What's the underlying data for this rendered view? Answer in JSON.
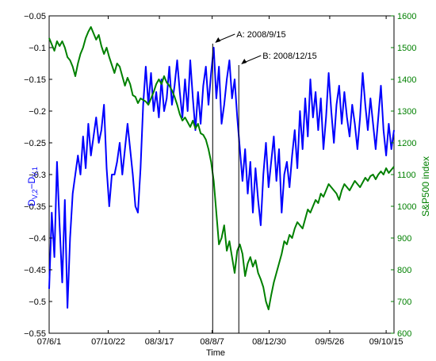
{
  "chart_data": {
    "type": "line",
    "xlabel": "Time",
    "ylabel_left_main": "D",
    "ylabel_left_sub1": "V,2",
    "ylabel_left_mid": "−D",
    "ylabel_left_sub2": "V,1",
    "ylabel_right": "S&P500 index",
    "x_ticks": [
      "07/6/1",
      "07/10/22",
      "08/3/17",
      "08/8/7",
      "08/12/30",
      "09/5/26",
      "09/10/15"
    ],
    "ylim_left": [
      -0.55,
      -0.05
    ],
    "y_ticks_left": [
      "-0.05",
      "-0.1",
      "-0.15",
      "-0.2",
      "-0.25",
      "-0.3",
      "-0.35",
      "-0.4",
      "-0.45",
      "-0.5",
      "-0.55"
    ],
    "ylim_right": [
      600,
      1600
    ],
    "y_ticks_right": [
      "1600",
      "1500",
      "1400",
      "1300",
      "1200",
      "1100",
      "1000",
      "900",
      "800",
      "700",
      "600"
    ],
    "left_color": "#0000ff",
    "right_color": "#008000",
    "series": [
      {
        "axis": "left",
        "color": "#0000ff",
        "points": [
          [
            0,
            -0.48
          ],
          [
            5,
            -0.36
          ],
          [
            10,
            -0.43
          ],
          [
            15,
            -0.28
          ],
          [
            20,
            -0.38
          ],
          [
            25,
            -0.47
          ],
          [
            30,
            -0.34
          ],
          [
            35,
            -0.51
          ],
          [
            40,
            -0.4
          ],
          [
            45,
            -0.33
          ],
          [
            50,
            -0.3
          ],
          [
            55,
            -0.27
          ],
          [
            60,
            -0.3
          ],
          [
            65,
            -0.24
          ],
          [
            70,
            -0.29
          ],
          [
            75,
            -0.22
          ],
          [
            80,
            -0.27
          ],
          [
            85,
            -0.24
          ],
          [
            90,
            -0.21
          ],
          [
            95,
            -0.25
          ],
          [
            100,
            -0.23
          ],
          [
            105,
            -0.19
          ],
          [
            110,
            -0.29
          ],
          [
            115,
            -0.35
          ],
          [
            120,
            -0.3
          ],
          [
            125,
            -0.3
          ],
          [
            130,
            -0.28
          ],
          [
            135,
            -0.25
          ],
          [
            140,
            -0.3
          ],
          [
            145,
            -0.26
          ],
          [
            150,
            -0.22
          ],
          [
            155,
            -0.26
          ],
          [
            160,
            -0.3
          ],
          [
            165,
            -0.35
          ],
          [
            170,
            -0.36
          ],
          [
            175,
            -0.29
          ],
          [
            180,
            -0.19
          ],
          [
            185,
            -0.13
          ],
          [
            190,
            -0.19
          ],
          [
            195,
            -0.14
          ],
          [
            200,
            -0.2
          ],
          [
            205,
            -0.17
          ],
          [
            210,
            -0.21
          ],
          [
            215,
            -0.15
          ],
          [
            220,
            -0.2
          ],
          [
            225,
            -0.18
          ],
          [
            230,
            -0.13
          ],
          [
            235,
            -0.19
          ],
          [
            240,
            -0.16
          ],
          [
            245,
            -0.12
          ],
          [
            250,
            -0.17
          ],
          [
            255,
            -0.21
          ],
          [
            260,
            -0.15
          ],
          [
            265,
            -0.2
          ],
          [
            270,
            -0.12
          ],
          [
            275,
            -0.18
          ],
          [
            280,
            -0.23
          ],
          [
            285,
            -0.17
          ],
          [
            290,
            -0.22
          ],
          [
            295,
            -0.16
          ],
          [
            300,
            -0.13
          ],
          [
            305,
            -0.19
          ],
          [
            310,
            -0.14
          ],
          [
            315,
            -0.1
          ],
          [
            320,
            -0.18
          ],
          [
            325,
            -0.13
          ],
          [
            330,
            -0.22
          ],
          [
            335,
            -0.19
          ],
          [
            340,
            -0.15
          ],
          [
            345,
            -0.12
          ],
          [
            350,
            -0.18
          ],
          [
            355,
            -0.15
          ],
          [
            360,
            -0.21
          ],
          [
            365,
            -0.26
          ],
          [
            370,
            -0.31
          ],
          [
            375,
            -0.26
          ],
          [
            380,
            -0.33
          ],
          [
            385,
            -0.28
          ],
          [
            390,
            -0.36
          ],
          [
            395,
            -0.29
          ],
          [
            400,
            -0.34
          ],
          [
            405,
            -0.38
          ],
          [
            410,
            -0.3
          ],
          [
            415,
            -0.25
          ],
          [
            420,
            -0.32
          ],
          [
            425,
            -0.28
          ],
          [
            430,
            -0.24
          ],
          [
            435,
            -0.31
          ],
          [
            440,
            -0.26
          ],
          [
            445,
            -0.36
          ],
          [
            450,
            -0.3
          ],
          [
            455,
            -0.28
          ],
          [
            460,
            -0.32
          ],
          [
            465,
            -0.27
          ],
          [
            470,
            -0.23
          ],
          [
            475,
            -0.29
          ],
          [
            480,
            -0.2
          ],
          [
            485,
            -0.26
          ],
          [
            490,
            -0.18
          ],
          [
            495,
            -0.24
          ],
          [
            500,
            -0.15
          ],
          [
            505,
            -0.21
          ],
          [
            510,
            -0.17
          ],
          [
            515,
            -0.23
          ],
          [
            520,
            -0.18
          ],
          [
            525,
            -0.26
          ],
          [
            530,
            -0.21
          ],
          [
            535,
            -0.14
          ],
          [
            540,
            -0.2
          ],
          [
            545,
            -0.25
          ],
          [
            550,
            -0.19
          ],
          [
            555,
            -0.16
          ],
          [
            560,
            -0.22
          ],
          [
            565,
            -0.17
          ],
          [
            570,
            -0.21
          ],
          [
            575,
            -0.24
          ],
          [
            580,
            -0.19
          ],
          [
            585,
            -0.22
          ],
          [
            590,
            -0.26
          ],
          [
            595,
            -0.21
          ],
          [
            600,
            -0.14
          ],
          [
            605,
            -0.19
          ],
          [
            610,
            -0.23
          ],
          [
            615,
            -0.18
          ],
          [
            620,
            -0.22
          ],
          [
            625,
            -0.26
          ],
          [
            630,
            -0.21
          ],
          [
            635,
            -0.16
          ],
          [
            640,
            -0.23
          ],
          [
            645,
            -0.27
          ],
          [
            650,
            -0.22
          ],
          [
            655,
            -0.26
          ],
          [
            660,
            -0.23
          ]
        ]
      },
      {
        "axis": "right",
        "color": "#008000",
        "points": [
          [
            0,
            1530
          ],
          [
            5,
            1510
          ],
          [
            10,
            1490
          ],
          [
            15,
            1520
          ],
          [
            20,
            1505
          ],
          [
            25,
            1520
          ],
          [
            30,
            1500
          ],
          [
            35,
            1470
          ],
          [
            40,
            1460
          ],
          [
            45,
            1440
          ],
          [
            50,
            1410
          ],
          [
            55,
            1450
          ],
          [
            60,
            1480
          ],
          [
            65,
            1500
          ],
          [
            70,
            1530
          ],
          [
            75,
            1550
          ],
          [
            80,
            1565
          ],
          [
            85,
            1545
          ],
          [
            90,
            1525
          ],
          [
            95,
            1540
          ],
          [
            100,
            1505
          ],
          [
            105,
            1480
          ],
          [
            110,
            1500
          ],
          [
            115,
            1470
          ],
          [
            120,
            1445
          ],
          [
            125,
            1420
          ],
          [
            130,
            1450
          ],
          [
            135,
            1440
          ],
          [
            140,
            1410
          ],
          [
            145,
            1380
          ],
          [
            150,
            1405
          ],
          [
            155,
            1385
          ],
          [
            160,
            1350
          ],
          [
            165,
            1345
          ],
          [
            170,
            1325
          ],
          [
            175,
            1340
          ],
          [
            180,
            1335
          ],
          [
            185,
            1330
          ],
          [
            190,
            1320
          ],
          [
            195,
            1340
          ],
          [
            200,
            1360
          ],
          [
            205,
            1385
          ],
          [
            210,
            1400
          ],
          [
            215,
            1385
          ],
          [
            220,
            1410
          ],
          [
            225,
            1390
          ],
          [
            230,
            1380
          ],
          [
            235,
            1365
          ],
          [
            240,
            1345
          ],
          [
            245,
            1320
          ],
          [
            250,
            1290
          ],
          [
            255,
            1270
          ],
          [
            260,
            1280
          ],
          [
            265,
            1265
          ],
          [
            270,
            1250
          ],
          [
            275,
            1270
          ],
          [
            280,
            1245
          ],
          [
            285,
            1260
          ],
          [
            290,
            1230
          ],
          [
            295,
            1225
          ],
          [
            300,
            1210
          ],
          [
            305,
            1180
          ],
          [
            310,
            1140
          ],
          [
            315,
            1080
          ],
          [
            320,
            980
          ],
          [
            325,
            880
          ],
          [
            330,
            900
          ],
          [
            335,
            940
          ],
          [
            340,
            860
          ],
          [
            345,
            890
          ],
          [
            350,
            840
          ],
          [
            355,
            790
          ],
          [
            360,
            860
          ],
          [
            365,
            880
          ],
          [
            370,
            850
          ],
          [
            375,
            780
          ],
          [
            380,
            820
          ],
          [
            385,
            840
          ],
          [
            390,
            810
          ],
          [
            395,
            830
          ],
          [
            400,
            790
          ],
          [
            405,
            770
          ],
          [
            410,
            745
          ],
          [
            415,
            700
          ],
          [
            420,
            675
          ],
          [
            425,
            720
          ],
          [
            430,
            760
          ],
          [
            435,
            790
          ],
          [
            440,
            820
          ],
          [
            445,
            850
          ],
          [
            450,
            890
          ],
          [
            455,
            880
          ],
          [
            460,
            910
          ],
          [
            465,
            900
          ],
          [
            470,
            930
          ],
          [
            475,
            950
          ],
          [
            480,
            940
          ],
          [
            485,
            930
          ],
          [
            490,
            960
          ],
          [
            495,
            990
          ],
          [
            500,
            980
          ],
          [
            505,
            1000
          ],
          [
            510,
            1020
          ],
          [
            515,
            1010
          ],
          [
            520,
            1040
          ],
          [
            525,
            1030
          ],
          [
            530,
            1050
          ],
          [
            535,
            1070
          ],
          [
            540,
            1060
          ],
          [
            545,
            1050
          ],
          [
            550,
            1040
          ],
          [
            555,
            1020
          ],
          [
            560,
            1050
          ],
          [
            565,
            1070
          ],
          [
            570,
            1060
          ],
          [
            575,
            1050
          ],
          [
            580,
            1065
          ],
          [
            585,
            1080
          ],
          [
            590,
            1070
          ],
          [
            595,
            1060
          ],
          [
            600,
            1075
          ],
          [
            605,
            1090
          ],
          [
            610,
            1080
          ],
          [
            615,
            1095
          ],
          [
            620,
            1100
          ],
          [
            625,
            1085
          ],
          [
            630,
            1100
          ],
          [
            635,
            1110
          ],
          [
            640,
            1100
          ],
          [
            645,
            1120
          ],
          [
            650,
            1105
          ],
          [
            655,
            1115
          ],
          [
            660,
            1125
          ]
        ]
      }
    ],
    "annotations": [
      {
        "label": "A: 2008/9/15",
        "x": 313
      },
      {
        "label": "B: 2008/12/15",
        "x": 363
      }
    ],
    "x_tick_positions": [
      0,
      113,
      211,
      312,
      421,
      537,
      645
    ],
    "x_range": [
      0,
      660
    ],
    "grid": false
  }
}
